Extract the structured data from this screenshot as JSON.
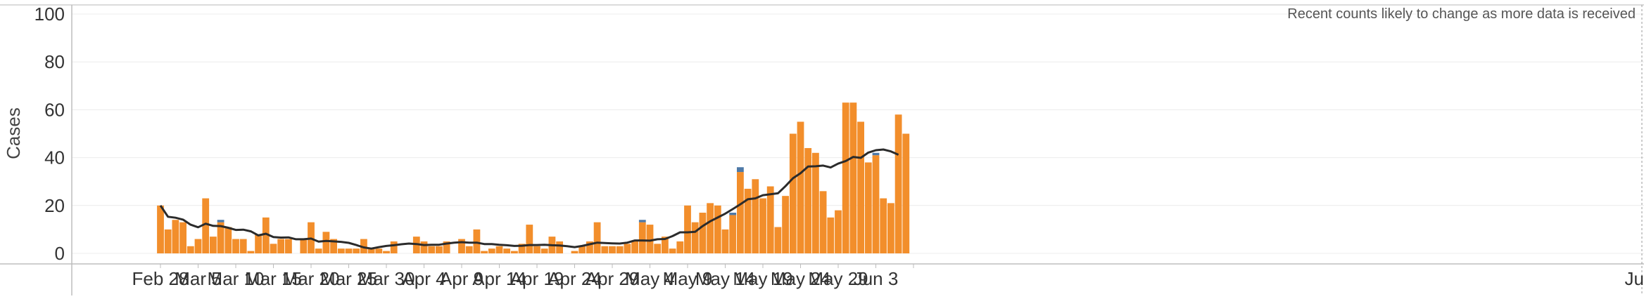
{
  "chart_data": {
    "type": "bar",
    "ylabel": "Cases",
    "annotation": "Recent counts likely to change as more data is received",
    "ylim": [
      -5,
      100
    ],
    "yticks": [
      0,
      20,
      40,
      60,
      80,
      100
    ],
    "x_tick_labels": [
      "Feb 28",
      "Mar 5",
      "Mar 10",
      "Mar 15",
      "Mar 20",
      "Mar 25",
      "Mar 30",
      "Apr 4",
      "Apr 9",
      "Apr 14",
      "Apr 19",
      "Apr 24",
      "Apr 29",
      "May 4",
      "May 9",
      "May 14",
      "May 19",
      "May 24",
      "May 29",
      "Jun 3",
      "Ju"
    ],
    "x_tick_day_offsets": [
      0,
      5,
      10,
      15,
      20,
      25,
      30,
      35,
      40,
      45,
      50,
      55,
      60,
      65,
      70,
      75,
      80,
      85,
      90,
      95,
      100
    ],
    "first_date": "Feb 28",
    "series": [
      {
        "values": [
          20,
          10,
          14,
          13,
          3,
          6,
          23,
          7,
          13,
          11,
          6,
          6,
          1,
          8,
          15,
          4,
          6,
          6,
          0,
          6,
          13,
          2,
          9,
          6,
          2,
          2,
          2,
          6,
          2,
          2,
          1,
          5,
          0,
          0,
          7,
          5,
          3,
          3,
          5,
          0,
          6,
          3,
          10,
          1,
          2,
          3,
          2,
          1,
          4,
          12,
          3,
          2,
          7,
          5,
          0,
          1,
          3,
          5,
          13,
          3,
          3,
          3,
          4,
          5,
          13,
          12,
          4,
          7,
          2,
          5,
          20,
          13,
          17,
          21,
          20,
          10,
          16,
          34,
          27,
          31,
          23,
          28,
          11,
          24,
          50,
          55,
          44,
          42,
          26,
          15,
          18,
          63,
          63,
          55,
          38,
          41,
          23,
          21,
          58,
          50
        ],
        "color": "#f28e2b"
      },
      {
        "values": [
          0,
          0,
          0,
          0,
          0,
          0,
          0,
          0,
          1,
          0,
          0,
          0,
          0,
          0,
          0,
          0,
          0,
          0,
          0,
          0,
          0,
          0,
          0,
          0,
          0,
          0,
          0,
          0,
          0,
          0,
          0,
          0,
          0,
          0,
          0,
          0,
          0,
          0,
          0,
          0,
          0,
          0,
          0,
          0,
          0,
          0,
          0,
          0,
          0,
          0,
          0,
          0,
          0,
          0,
          0,
          0,
          0,
          0,
          0,
          0,
          0,
          0,
          0,
          0,
          1,
          0,
          0,
          0,
          0,
          0,
          0,
          0,
          0,
          0,
          0,
          0,
          1,
          2,
          0,
          0,
          0,
          0,
          0,
          0,
          0,
          0,
          0,
          0,
          0,
          0,
          0,
          0,
          0,
          0,
          0,
          1,
          0,
          0,
          0,
          0
        ],
        "color": "#4e79a7"
      }
    ],
    "line": {
      "values": [
        20,
        15.3,
        14.9,
        14.1,
        12,
        10.9,
        12.4,
        11.5,
        11.4,
        10.7,
        9.8,
        9.9,
        9.2,
        7.5,
        8.2,
        6.8,
        6.6,
        6.7,
        5.9,
        5.9,
        6.2,
        4.9,
        5.2,
        5,
        4.8,
        4.4,
        3.5,
        2.5,
        2,
        2.6,
        3.1,
        3.4,
        3.8,
        4.1,
        3.9,
        3.5,
        3.6,
        3.6,
        4.1,
        4.5,
        4.7,
        4.5,
        4.5,
        3.9,
        3.9,
        3.6,
        3.4,
        3.1,
        3.2,
        3.5,
        3.5,
        3.6,
        3.4,
        3.3,
        3,
        2.6,
        3.1,
        3.8,
        4.5,
        4.3,
        4.2,
        4.1,
        4.5,
        5.4,
        5.4,
        5.3,
        5.9,
        6,
        7.2,
        8.8,
        8.8,
        9,
        11.4,
        13.4,
        15,
        16.6,
        18.5,
        20.5,
        22.6,
        23,
        24.3,
        24.7,
        25.1,
        28.1,
        31.4,
        33.5,
        36.3,
        36.4,
        36.7,
        35.9,
        37.5,
        38.6,
        40.3,
        39.9,
        42.1,
        43.1,
        43.4,
        42.6,
        41.2,
        null
      ],
      "color": "#2b2b2b"
    }
  }
}
